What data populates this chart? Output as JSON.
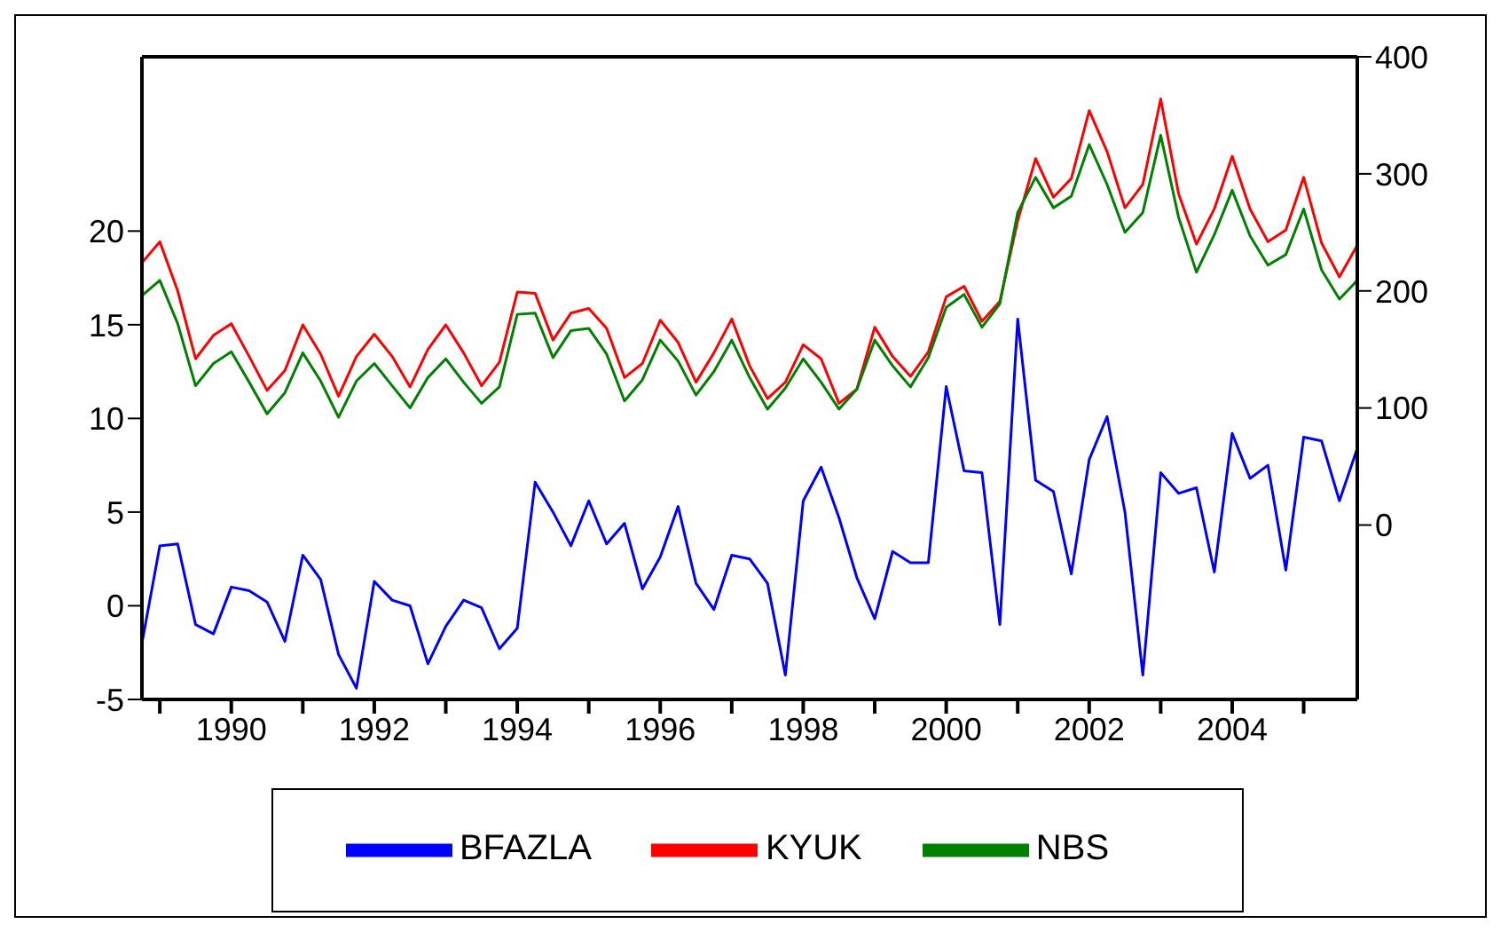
{
  "chart_data": {
    "type": "line",
    "x": [
      1988.75,
      1989,
      1989.25,
      1989.5,
      1989.75,
      1990,
      1990.25,
      1990.5,
      1990.75,
      1991,
      1991.25,
      1991.5,
      1991.75,
      1992,
      1992.25,
      1992.5,
      1992.75,
      1993,
      1993.25,
      1993.5,
      1993.75,
      1994,
      1994.25,
      1994.5,
      1994.75,
      1995,
      1995.25,
      1995.5,
      1995.75,
      1996,
      1996.25,
      1996.5,
      1996.75,
      1997,
      1997.25,
      1997.5,
      1997.75,
      1998,
      1998.25,
      1998.5,
      1998.75,
      1999,
      1999.25,
      1999.5,
      1999.75,
      2000,
      2000.25,
      2000.5,
      2000.75,
      2001,
      2001.25,
      2001.5,
      2001.75,
      2002,
      2002.25,
      2002.5,
      2002.75,
      2003,
      2003.25,
      2003.5,
      2003.75,
      2004,
      2004.25,
      2004.5,
      2004.75,
      2005,
      2005.25,
      2005.5,
      2005.75
    ],
    "series": [
      {
        "name": "BFAZLA",
        "color": "#0000ff",
        "axis": "y",
        "values": [
          -2.0,
          3.2,
          3.3,
          -1.0,
          -1.5,
          1.0,
          0.8,
          0.2,
          -1.9,
          2.7,
          1.4,
          -2.6,
          -4.4,
          1.3,
          0.3,
          0.0,
          -3.1,
          -1.1,
          0.3,
          -0.1,
          -2.3,
          -1.2,
          6.6,
          5.0,
          3.2,
          5.6,
          3.3,
          4.4,
          0.9,
          2.6,
          5.3,
          1.2,
          -0.2,
          2.7,
          2.5,
          1.2,
          -3.7,
          5.6,
          7.4,
          4.7,
          1.5,
          -0.7,
          2.9,
          2.3,
          2.3,
          11.7,
          7.2,
          7.1,
          -1.0,
          15.3,
          6.7,
          6.1,
          1.7,
          7.8,
          10.1,
          5.0,
          -3.7,
          7.1,
          6.0,
          6.3,
          1.8,
          9.2,
          6.8,
          7.5,
          1.9,
          9.0,
          8.8,
          5.6,
          8.4
        ]
      },
      {
        "name": "KYUK",
        "color": "#ff0000",
        "axis": "y2",
        "values": [
          224,
          242,
          200,
          142,
          162,
          172,
          144,
          115,
          132,
          171,
          146,
          110,
          144,
          163,
          144,
          118,
          150,
          171,
          147,
          119,
          139,
          199,
          198,
          158,
          181,
          185,
          168,
          126,
          138,
          175,
          156,
          122,
          147,
          176,
          136,
          108,
          122,
          154,
          142,
          104,
          116,
          169,
          144,
          127,
          148,
          195,
          204,
          174,
          191,
          260,
          313,
          280,
          296,
          354,
          319,
          271,
          291,
          364,
          283,
          240,
          270,
          315,
          270,
          242,
          252,
          297,
          241,
          212,
          239
        ]
      },
      {
        "name": "NBS",
        "color": "#008000",
        "axis": "y2",
        "values": [
          196,
          209,
          172,
          119,
          138,
          148,
          122,
          95,
          113,
          147,
          123,
          92,
          123,
          138,
          119,
          100,
          126,
          142,
          122,
          104,
          118,
          180,
          181,
          143,
          166,
          168,
          146,
          106,
          124,
          158,
          140,
          111,
          131,
          158,
          126,
          99,
          117,
          142,
          122,
          99,
          116,
          158,
          136,
          118,
          143,
          186,
          197,
          169,
          189,
          267,
          297,
          271,
          281,
          325,
          291,
          250,
          267,
          333,
          263,
          216,
          248,
          286,
          247,
          222,
          231,
          270,
          218,
          193,
          209
        ]
      }
    ],
    "xlim": [
      1988.75,
      2005.75
    ],
    "xticks": [
      {
        "value": 1989,
        "label": null
      },
      1990,
      {
        "value": 1991,
        "label": null
      },
      1992,
      {
        "value": 1993,
        "label": null
      },
      1994,
      {
        "value": 1995,
        "label": null
      },
      1996,
      {
        "value": 1997,
        "label": null
      },
      1998,
      {
        "value": 1999,
        "label": null
      },
      2000,
      {
        "value": 2001,
        "label": null
      },
      2002,
      {
        "value": 2003,
        "label": null
      },
      2004,
      {
        "value": 2005,
        "label": null
      }
    ],
    "ylim": [
      -5,
      29.3
    ],
    "yticks": [
      -5,
      0,
      5,
      10,
      15,
      20
    ],
    "y2lim": [
      -149,
      400
    ],
    "y2ticks": [
      0,
      100,
      200,
      300,
      400
    ],
    "grid": false,
    "legend": "bottom",
    "marker": "none",
    "line_style": "solid"
  }
}
